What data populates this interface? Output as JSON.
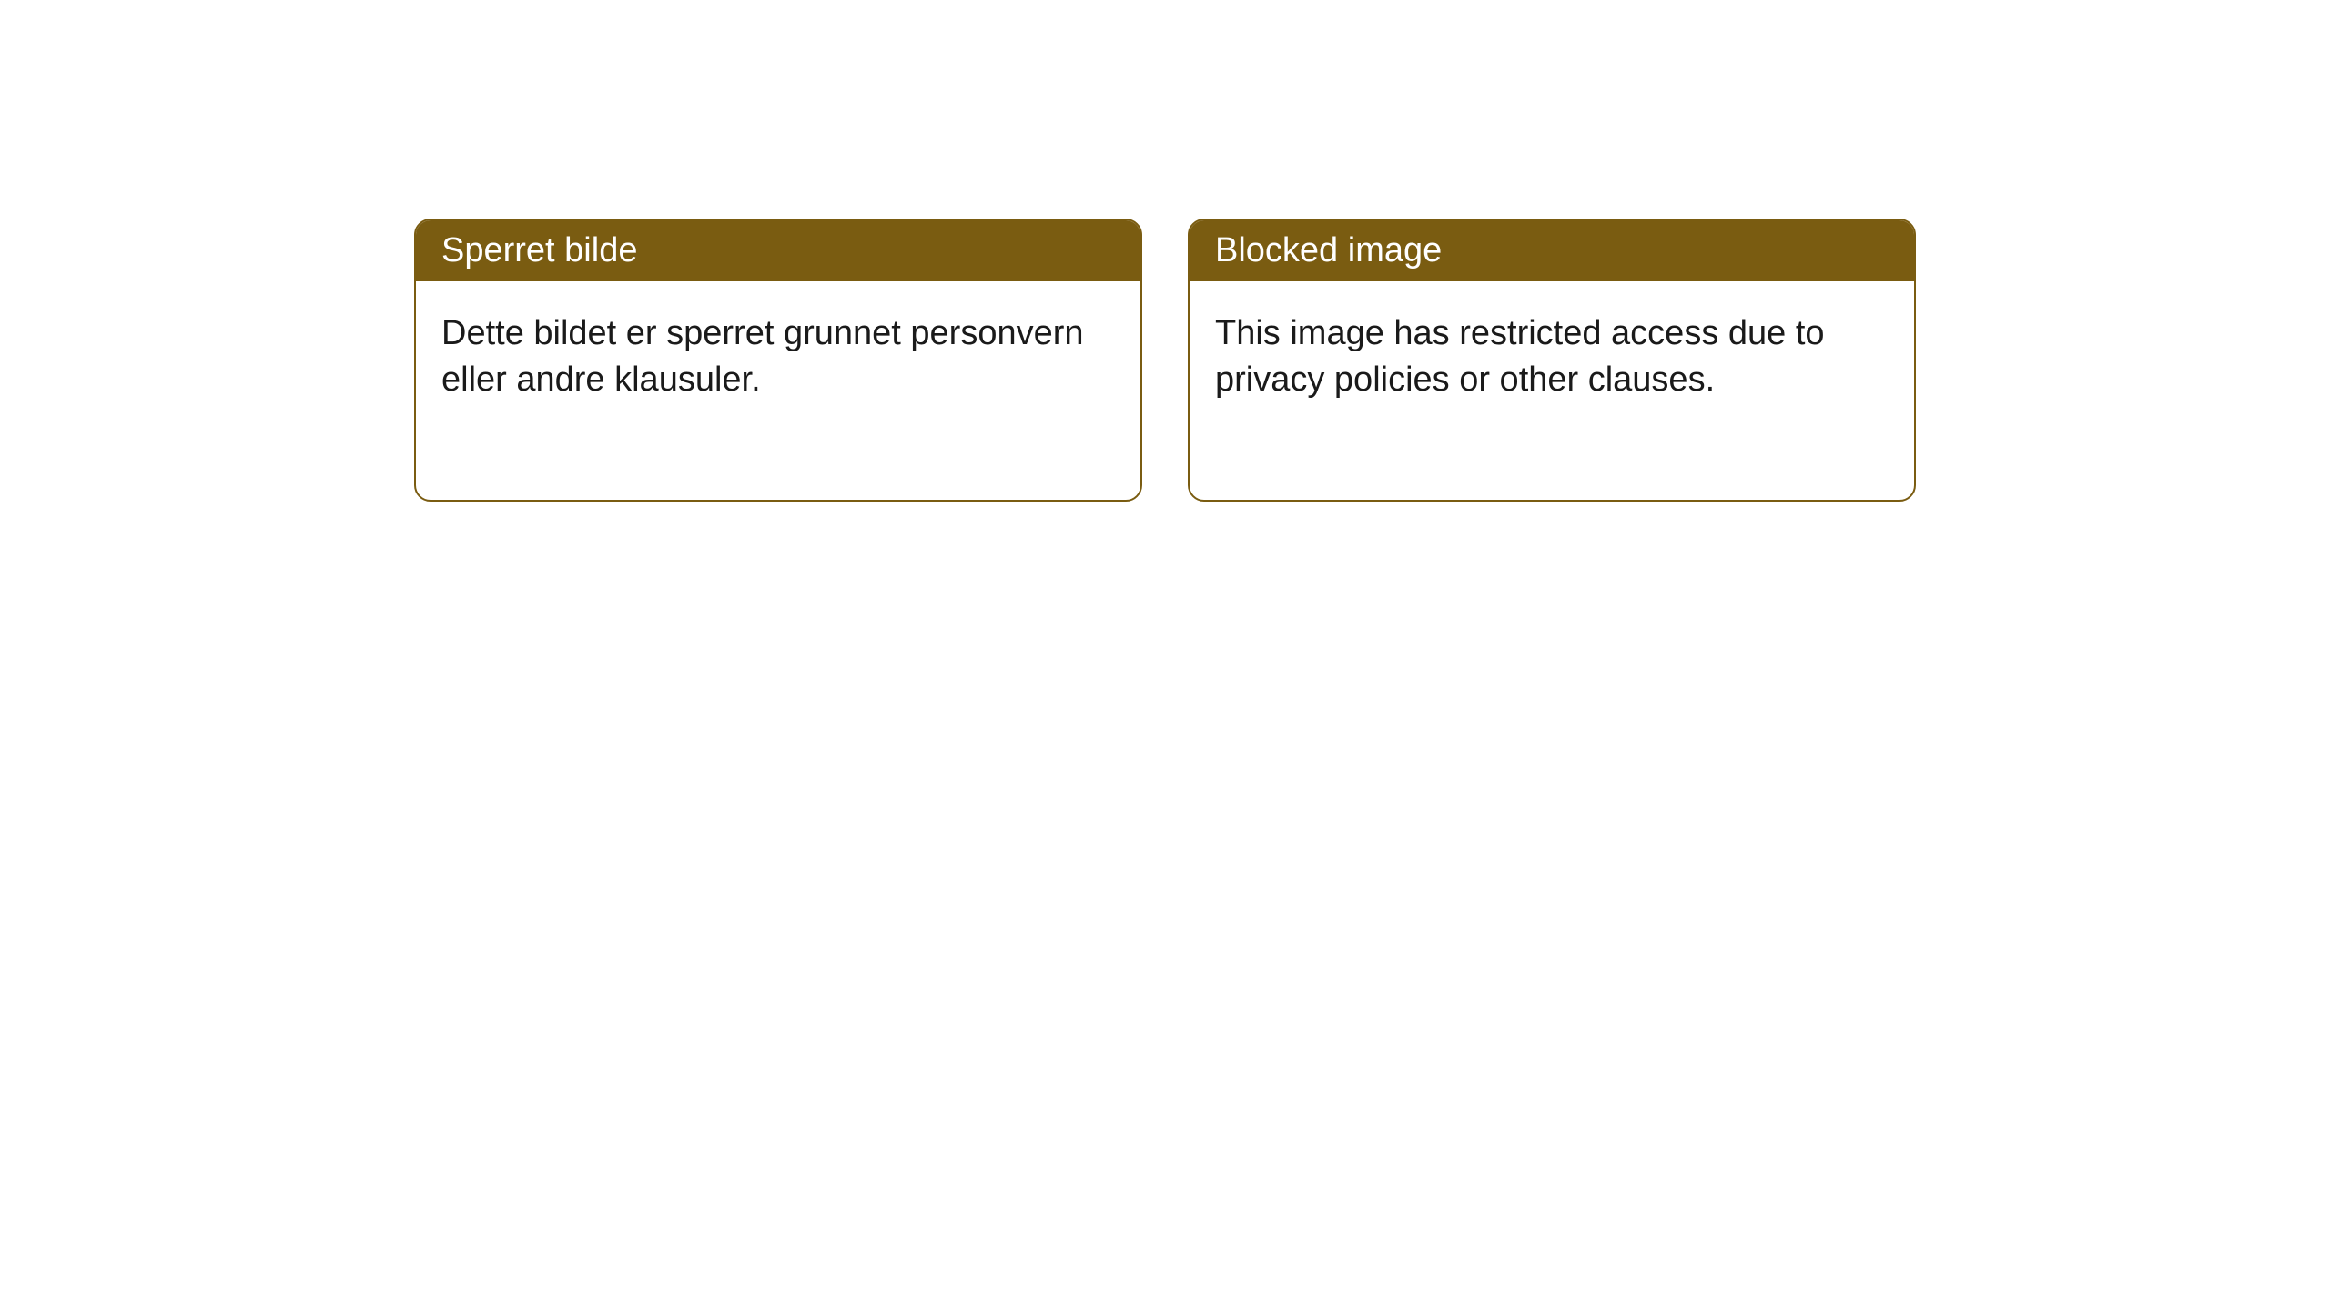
{
  "cards": [
    {
      "header": "Sperret bilde",
      "body": "Dette bildet er sperret grunnet personvern eller andre klausuler."
    },
    {
      "header": "Blocked image",
      "body": "This image has restricted access due to privacy policies or other clauses."
    }
  ],
  "styling": {
    "header_bg_color": "#7a5c11",
    "header_text_color": "#ffffff",
    "border_color": "#7a5c11",
    "body_bg_color": "#ffffff",
    "body_text_color": "#1a1a1a",
    "border_radius": 18,
    "header_fontsize": 38,
    "body_fontsize": 38,
    "card_gap": 50,
    "page_bg_color": "#ffffff"
  }
}
